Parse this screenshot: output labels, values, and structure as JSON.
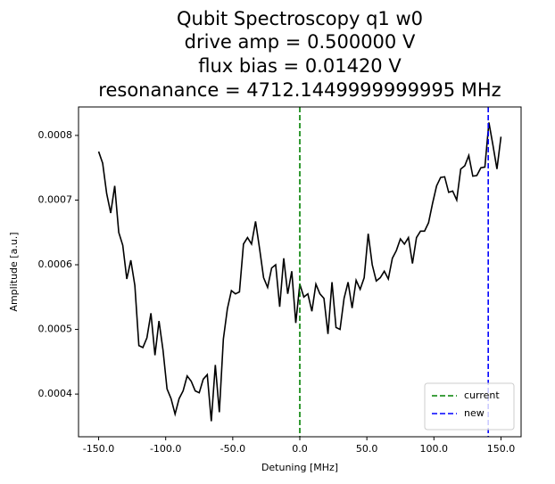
{
  "chart_data": {
    "type": "line",
    "title": [
      "Qubit Spectroscopy q1 w0",
      "drive amp = 0.500000 V",
      "flux bias = 0.01420 V",
      "resonanance = 4712.1449999999995 MHz"
    ],
    "x_label": "Detuning [MHz]",
    "y_label": "Amplitude [a.u.]",
    "color": "#000000",
    "x": [
      -150,
      -147,
      -144,
      -141,
      -138,
      -135,
      -132,
      -129,
      -126,
      -123,
      -120,
      -117,
      -114,
      -111,
      -108,
      -105,
      -102,
      -99,
      -96,
      -93,
      -90,
      -87,
      -84,
      -81,
      -78,
      -75,
      -72,
      -69,
      -66,
      -63,
      -60,
      -57,
      -54,
      -51,
      -48,
      -45,
      -42,
      -39,
      -36,
      -33,
      -30,
      -27,
      -24,
      -21,
      -18,
      -15,
      -12,
      -9,
      -6,
      -3,
      0,
      3,
      6,
      9,
      12,
      15,
      18,
      21,
      24,
      27,
      30,
      33,
      36,
      39,
      42,
      45,
      48,
      51,
      54,
      57,
      60,
      63,
      66,
      69,
      72,
      75,
      78,
      81,
      84,
      87,
      90,
      93,
      96,
      99,
      102,
      105,
      108,
      111,
      114,
      117,
      120,
      123,
      126,
      129,
      132,
      135,
      138,
      141,
      144,
      147,
      150
    ],
    "values": [
      0.000775,
      0.000757,
      0.00071,
      0.00068,
      0.000722,
      0.00065,
      0.00063,
      0.000578,
      0.000607,
      0.000568,
      0.000475,
      0.000472,
      0.000487,
      0.000525,
      0.00046,
      0.000513,
      0.000468,
      0.000408,
      0.000393,
      0.000369,
      0.000393,
      0.000405,
      0.000428,
      0.00042,
      0.000405,
      0.000402,
      0.000423,
      0.00043,
      0.000358,
      0.000445,
      0.000372,
      0.000485,
      0.000532,
      0.00056,
      0.000555,
      0.000558,
      0.000632,
      0.000642,
      0.000632,
      0.000667,
      0.000625,
      0.00058,
      0.000565,
      0.000595,
      0.0006,
      0.000535,
      0.00061,
      0.000555,
      0.00059,
      0.00051,
      0.00057,
      0.00055,
      0.000555,
      0.000528,
      0.00057,
      0.000555,
      0.000548,
      0.000493,
      0.000573,
      0.000503,
      0.0005,
      0.000548,
      0.000573,
      0.000533,
      0.000576,
      0.000562,
      0.00058,
      0.000648,
      0.0006,
      0.000575,
      0.00058,
      0.00059,
      0.000578,
      0.00061,
      0.000622,
      0.00064,
      0.000632,
      0.000642,
      0.000602,
      0.000642,
      0.000652,
      0.000652,
      0.000665,
      0.000695,
      0.000722,
      0.000735,
      0.000736,
      0.000712,
      0.000714,
      0.0007,
      0.000748,
      0.000753,
      0.000769,
      0.000737,
      0.000738,
      0.00075,
      0.000751,
      0.00082,
      0.000785,
      0.000748,
      0.000798
    ],
    "vlines": [
      {
        "name": "current",
        "x": 0,
        "color": "#008000"
      },
      {
        "name": "new",
        "x": 140.5,
        "color": "#0000ff"
      }
    ],
    "xlim": [
      -165,
      165
    ],
    "ylim": [
      0.000334,
      0.000844
    ],
    "xticks": [
      {
        "value": -150,
        "label": "-150.0"
      },
      {
        "value": -100,
        "label": "-100.0"
      },
      {
        "value": -50,
        "label": "-50.0"
      },
      {
        "value": 0,
        "label": "0.0"
      },
      {
        "value": 50,
        "label": "50.0"
      },
      {
        "value": 100,
        "label": "100.0"
      },
      {
        "value": 150,
        "label": "150.0"
      }
    ],
    "yticks": [
      0.0004,
      0.0005,
      0.0006,
      0.0007,
      0.0008
    ],
    "legend": "lower right"
  }
}
